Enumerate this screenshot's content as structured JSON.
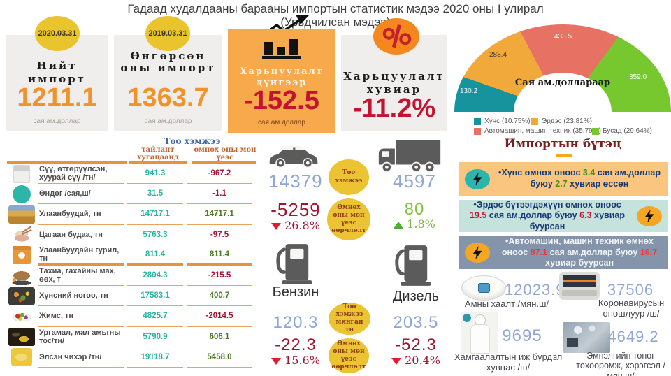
{
  "title": {
    "line1": "Гадаад худалдааны барааны импортын статистик мэдээ 2020 оны I улирал",
    "line2": "(Урьдчилсан мэдээ)"
  },
  "summary_cards": [
    {
      "badge": "2020.03.31",
      "title": "Нийт импорт",
      "value": "1211.1",
      "unit": "сая ам.доллар"
    },
    {
      "badge": "2019.03.31",
      "title": "Өнгөрсөн оны импорт",
      "value": "1363.7",
      "unit": "сая ам.доллар"
    },
    {
      "badge": "",
      "title": "Харьцуулалт дүнгээр",
      "value": "-152.5",
      "unit": "сая ам.доллар"
    },
    {
      "badge": "",
      "title": "Харьцуулалт хувиар",
      "value": "-11.2%",
      "unit": ""
    }
  ],
  "chart_data": {
    "type": "pie",
    "variant": "half-donut",
    "title": "Сая ам.доллараар",
    "labels": [
      "Хүнс",
      "Эрдэс",
      "Автомашин, машин техник",
      "Бусад"
    ],
    "values": [
      130.2,
      288.4,
      433.5,
      359.0
    ],
    "percents": [
      10.75,
      23.81,
      35.79,
      29.64
    ],
    "value_labels": [
      "130.2",
      "288.4",
      "433.5",
      "359.0"
    ],
    "colors": [
      "#17939d",
      "#f2a93b",
      "#e77263",
      "#76c82e"
    ],
    "legend": [
      "Хүнс  (10.75%)",
      "Эрдэс (23.81%)",
      "Автомашин, машин техник (35.79%)",
      "Бусад (29.64%)"
    ],
    "legend_position": "bottom"
  },
  "table": {
    "group_header": "Тоо хэмжээ",
    "col1": "тайлант хугацаанд",
    "col2": "өмнөх оны мөн үеэс",
    "rows": [
      {
        "icon": "milk",
        "label": "Сүү, өтгөрүүлсэн, хуурай сүү /тн/",
        "current": "941.3",
        "change": "-967.2",
        "dir": "neg"
      },
      {
        "icon": "egg",
        "label": "Өндөг /сая,ш/",
        "current": "31.5",
        "change": "-1.1",
        "dir": "neg"
      },
      {
        "icon": "wheat",
        "label": "Улаанбуудай, тн",
        "current": "14717.1",
        "change": "14717.1",
        "dir": "pos"
      },
      {
        "icon": "rice",
        "label": "Цагаан будаа, тн",
        "current": "5763.3",
        "change": "-97.5",
        "dir": "neg"
      },
      {
        "icon": "flour",
        "label": "Улаанбуудайн гурил, тн",
        "current": "811.4",
        "change": "811.4",
        "dir": "pos"
      },
      {
        "icon": "meat",
        "label": "Тахиа, гахайны мах, өөх, т",
        "current": "2804.3",
        "change": "-215.5",
        "dir": "neg"
      },
      {
        "icon": "vegetables",
        "label": "Хүнсний ногоо, тн",
        "current": "17583.1",
        "change": "400.7",
        "dir": "pos"
      },
      {
        "icon": "fruit",
        "label": "Жимс, тн",
        "current": "4825.7",
        "change": "-2014.5",
        "dir": "neg"
      },
      {
        "icon": "oil",
        "label": "Ургамал, мал амьтны тос/тн/",
        "current": "5790.9",
        "change": "606.1",
        "dir": "pos"
      },
      {
        "icon": "sugar",
        "label": "Элсэн чихэр /тн/",
        "current": "19118.7",
        "change": "5458.0",
        "dir": "pos"
      }
    ]
  },
  "vehicles": {
    "bubble1": "Тоо хэмжээ",
    "bubble2": "Өмнөх оны мөн үеэс өөрчлөлт",
    "car": {
      "count": "14379",
      "change": "-5259",
      "pct": "26.8%",
      "dir": "down"
    },
    "truck": {
      "count": "4597",
      "change": "80",
      "pct": "1.8%",
      "dir": "up"
    }
  },
  "fuel": {
    "bubble1": "Тоо хэмжээ мянган тн",
    "bubble2": "Өмнөх оны мөн үеэс өөрчлөлт",
    "benzin": {
      "label": "Бензин",
      "count": "120.3",
      "change": "-22.3",
      "pct": "15.6%",
      "dir": "down"
    },
    "diesel": {
      "label": "Дизель",
      "count": "203.5",
      "change": "-52.3",
      "pct": "20.4%",
      "dir": "down"
    }
  },
  "structure": {
    "title": "Импортын бүтэц",
    "items": [
      {
        "part1": "•Хүнс өмнөх оноос ",
        "num1": "3.4",
        "part2": " сая ам.доллар буюу ",
        "num2": "2.7",
        "part3": " хувиар өссөн",
        "trend": "up"
      },
      {
        "part1": "•Эрдэс бүтээгдэхүүн өмнөх оноос ",
        "num1": "19.5",
        "part2": " сая ам.доллар буюу ",
        "num2": "6.3",
        "part3": " хувиар буурсан",
        "trend": "down"
      },
      {
        "part1": "•Автомашин, машин техник өмнөх оноос ",
        "num1": "87.1",
        "part2": " сая ам.доллар буюу ",
        "num2": "16.7",
        "part3": " хувиар буурсан",
        "trend": "down"
      }
    ]
  },
  "medical": {
    "items": [
      {
        "icon": "mask",
        "value": "12023.9",
        "label": "Амны хаалт /мян.ш/"
      },
      {
        "icon": "test",
        "value": "37506",
        "label": "Коронавирусын оношлуур /ш/"
      },
      {
        "icon": "suit",
        "value": "9695",
        "label": "Хамгаалалтын иж бүрдэл хувцас /ш/"
      },
      {
        "icon": "equipment",
        "value": "4649.2",
        "label": "Эмнэлгийн тоног төхөөрөмж, хэрэгсэл /мян.ш/"
      }
    ]
  },
  "colors": {
    "card_number_orange": "#f0932d",
    "negative_red": "#c41330",
    "table_current_teal": "#29b3a2",
    "table_positive_green": "#4c7a21",
    "count_blue": "#8ea8d6",
    "bubble_yellow": "#ecc433",
    "rule_orange": "#e8923c"
  }
}
